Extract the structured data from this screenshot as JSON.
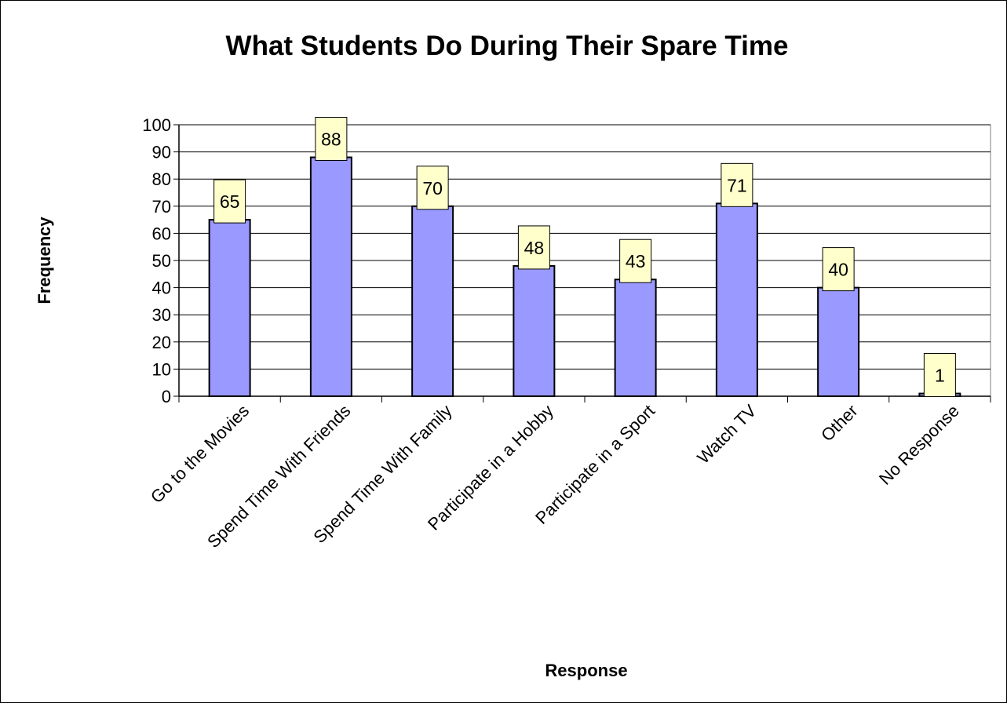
{
  "chart_data": {
    "type": "bar",
    "title": "What Students Do During Their Spare Time",
    "xlabel": "Response",
    "ylabel": "Frequency",
    "categories": [
      "Go to the Movies",
      "Spend Time With Friends",
      "Spend Time With Family",
      "Participate in a Hobby",
      "Participate in a Sport",
      "Watch TV",
      "Other",
      "No Response"
    ],
    "values": [
      65,
      88,
      70,
      48,
      43,
      71,
      40,
      1
    ],
    "ylim": [
      0,
      100
    ],
    "yticks": [
      0,
      10,
      20,
      30,
      40,
      50,
      60,
      70,
      80,
      90,
      100
    ],
    "grid": true,
    "legend": "none",
    "data_labels": true
  },
  "colors": {
    "bar_fill": "#9999ff",
    "bar_stroke": "#000000",
    "label_box_fill": "#ffffcc",
    "grid": "#000000",
    "background": "#ffffff"
  }
}
